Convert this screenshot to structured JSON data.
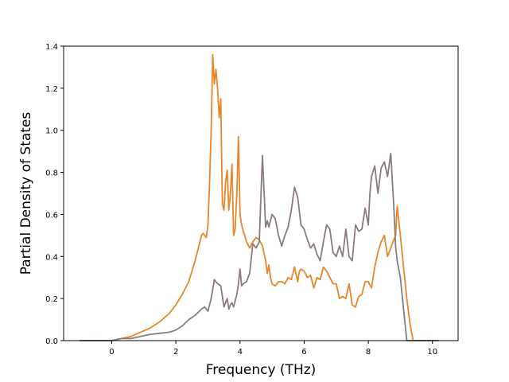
{
  "chart_data": {
    "type": "line",
    "title": "",
    "xlabel": "Frequency (THz)",
    "ylabel": "Partial Density of States",
    "xlim": [
      -1.5,
      10.8
    ],
    "ylim": [
      0.0,
      1.4
    ],
    "xticks": [
      "0",
      "2",
      "4",
      "6",
      "8",
      "10"
    ],
    "yticks": [
      "0.0",
      "0.2",
      "0.4",
      "0.6",
      "0.8",
      "1.0",
      "1.2",
      "1.4"
    ],
    "grid": false,
    "legend": "none",
    "series": [
      {
        "color": "#e8862a",
        "x": [
          -1.0,
          0.0,
          0.3,
          0.6,
          0.9,
          1.2,
          1.5,
          1.8,
          2.0,
          2.2,
          2.4,
          2.6,
          2.8,
          2.85,
          2.95,
          3.0,
          3.05,
          3.1,
          3.15,
          3.2,
          3.25,
          3.3,
          3.35,
          3.4,
          3.45,
          3.5,
          3.55,
          3.6,
          3.65,
          3.7,
          3.75,
          3.8,
          3.85,
          3.9,
          3.95,
          4.0,
          4.05,
          4.1,
          4.15,
          4.2,
          4.3,
          4.4,
          4.5,
          4.6,
          4.7,
          4.8,
          4.85,
          4.9,
          4.95,
          5.0,
          5.1,
          5.2,
          5.3,
          5.4,
          5.5,
          5.6,
          5.7,
          5.8,
          5.85,
          5.9,
          6.0,
          6.1,
          6.2,
          6.3,
          6.4,
          6.5,
          6.6,
          6.7,
          6.8,
          6.9,
          7.0,
          7.1,
          7.2,
          7.3,
          7.4,
          7.5,
          7.6,
          7.7,
          7.8,
          7.9,
          8.0,
          8.1,
          8.2,
          8.3,
          8.4,
          8.5,
          8.6,
          8.7,
          8.8,
          8.85,
          8.9,
          9.0,
          9.1,
          9.2,
          9.3,
          9.4,
          10.2
        ],
        "y": [
          0.0,
          0.0,
          0.01,
          0.02,
          0.04,
          0.06,
          0.09,
          0.13,
          0.17,
          0.22,
          0.28,
          0.38,
          0.5,
          0.51,
          0.49,
          0.55,
          0.75,
          1.0,
          1.36,
          1.22,
          1.29,
          1.2,
          1.06,
          1.15,
          0.65,
          0.62,
          0.75,
          0.81,
          0.62,
          0.7,
          0.84,
          0.5,
          0.53,
          0.7,
          0.97,
          0.6,
          0.55,
          0.52,
          0.5,
          0.47,
          0.44,
          0.47,
          0.49,
          0.48,
          0.45,
          0.38,
          0.32,
          0.36,
          0.3,
          0.27,
          0.26,
          0.28,
          0.28,
          0.27,
          0.3,
          0.29,
          0.35,
          0.28,
          0.33,
          0.34,
          0.33,
          0.3,
          0.31,
          0.25,
          0.3,
          0.29,
          0.35,
          0.33,
          0.3,
          0.27,
          0.27,
          0.2,
          0.21,
          0.2,
          0.27,
          0.17,
          0.16,
          0.21,
          0.22,
          0.28,
          0.28,
          0.25,
          0.35,
          0.42,
          0.47,
          0.5,
          0.4,
          0.44,
          0.48,
          0.5,
          0.64,
          0.5,
          0.35,
          0.2,
          0.08,
          0.0,
          0.0
        ]
      },
      {
        "color": "#8c7b7d",
        "x": [
          -1.0,
          0.0,
          0.3,
          0.6,
          0.9,
          1.2,
          1.5,
          1.8,
          2.0,
          2.2,
          2.4,
          2.6,
          2.8,
          2.9,
          3.0,
          3.1,
          3.2,
          3.25,
          3.3,
          3.4,
          3.5,
          3.6,
          3.65,
          3.7,
          3.75,
          3.8,
          3.9,
          3.95,
          4.0,
          4.05,
          4.1,
          4.2,
          4.3,
          4.4,
          4.5,
          4.6,
          4.7,
          4.8,
          4.85,
          4.9,
          5.0,
          5.1,
          5.2,
          5.3,
          5.4,
          5.5,
          5.6,
          5.7,
          5.8,
          5.9,
          6.0,
          6.1,
          6.2,
          6.3,
          6.4,
          6.5,
          6.6,
          6.7,
          6.8,
          6.9,
          7.0,
          7.1,
          7.2,
          7.3,
          7.4,
          7.5,
          7.6,
          7.7,
          7.8,
          7.9,
          8.0,
          8.05,
          8.1,
          8.2,
          8.3,
          8.4,
          8.5,
          8.6,
          8.7,
          8.8,
          8.85,
          8.9,
          9.0,
          9.1,
          9.2,
          9.3,
          9.4,
          10.2
        ],
        "y": [
          0.0,
          0.0,
          0.01,
          0.01,
          0.02,
          0.03,
          0.035,
          0.04,
          0.05,
          0.07,
          0.1,
          0.12,
          0.15,
          0.16,
          0.14,
          0.2,
          0.29,
          0.28,
          0.27,
          0.26,
          0.16,
          0.2,
          0.15,
          0.17,
          0.18,
          0.16,
          0.22,
          0.27,
          0.34,
          0.26,
          0.27,
          0.28,
          0.32,
          0.46,
          0.44,
          0.47,
          0.88,
          0.54,
          0.57,
          0.54,
          0.6,
          0.58,
          0.5,
          0.45,
          0.5,
          0.54,
          0.62,
          0.73,
          0.68,
          0.55,
          0.53,
          0.48,
          0.44,
          0.46,
          0.41,
          0.38,
          0.47,
          0.55,
          0.53,
          0.42,
          0.4,
          0.45,
          0.4,
          0.53,
          0.4,
          0.38,
          0.55,
          0.52,
          0.53,
          0.63,
          0.55,
          0.7,
          0.78,
          0.83,
          0.7,
          0.82,
          0.85,
          0.78,
          0.89,
          0.63,
          0.45,
          0.38,
          0.3,
          0.15,
          0.0,
          0.0,
          0.0,
          0.0
        ]
      }
    ]
  }
}
